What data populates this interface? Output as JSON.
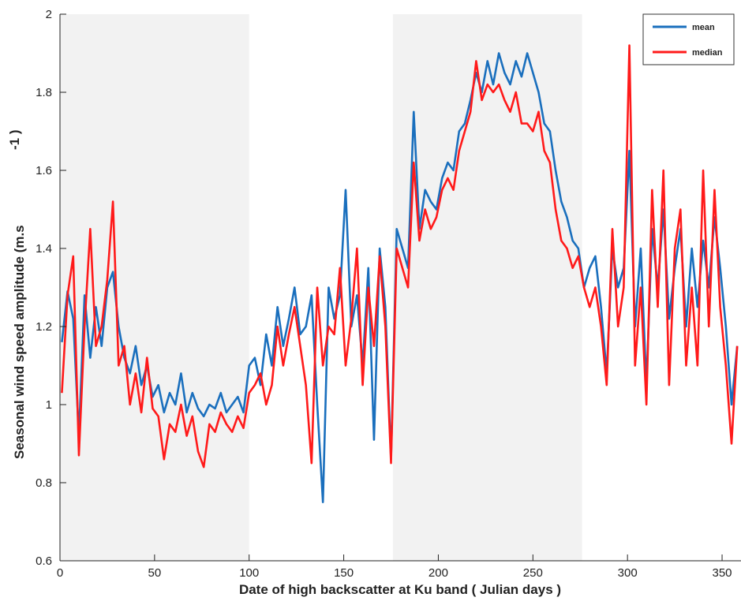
{
  "chart_data": {
    "type": "line",
    "xlabel": "Date of high backscatter at Ku band ( Julian days )",
    "ylabel": "Seasonal wind speed amplitude (m.s",
    "ylabel_superscript": "-1 )",
    "xlim": [
      0,
      360
    ],
    "xticks": [
      0,
      50,
      100,
      150,
      200,
      250,
      300,
      350
    ],
    "ylim": [
      0.6,
      2
    ],
    "yticks": [
      0.6,
      0.8,
      1,
      1.2,
      1.4,
      1.6,
      1.8,
      2
    ],
    "shaded_spans": [
      [
        0,
        100
      ],
      [
        176,
        276
      ]
    ],
    "shade_color": "#f2f2f2",
    "legend": "upper right",
    "x": [
      1,
      4,
      7,
      10,
      13,
      16,
      19,
      22,
      25,
      28,
      31,
      34,
      37,
      40,
      43,
      46,
      49,
      52,
      55,
      58,
      61,
      64,
      67,
      70,
      73,
      76,
      79,
      82,
      85,
      88,
      91,
      94,
      97,
      100,
      103,
      106,
      109,
      112,
      115,
      118,
      121,
      124,
      127,
      130,
      133,
      136,
      139,
      142,
      145,
      148,
      151,
      154,
      157,
      160,
      163,
      166,
      169,
      172,
      175,
      178,
      181,
      184,
      187,
      190,
      193,
      196,
      199,
      202,
      205,
      208,
      211,
      214,
      217,
      220,
      223,
      226,
      229,
      232,
      235,
      238,
      241,
      244,
      247,
      250,
      253,
      256,
      259,
      262,
      265,
      268,
      271,
      274,
      277,
      280,
      283,
      286,
      289,
      292,
      295,
      298,
      301,
      304,
      307,
      310,
      313,
      316,
      319,
      322,
      325,
      328,
      331,
      334,
      337,
      340,
      343,
      346,
      349,
      352,
      355,
      358
    ],
    "series": [
      {
        "name": "mean",
        "color": "#1a6fbd",
        "values": [
          1.16,
          1.29,
          1.22,
          0.92,
          1.28,
          1.12,
          1.25,
          1.15,
          1.3,
          1.34,
          1.2,
          1.12,
          1.08,
          1.15,
          1.05,
          1.1,
          1.02,
          1.05,
          0.98,
          1.03,
          1.0,
          1.08,
          0.98,
          1.03,
          0.99,
          0.97,
          1.0,
          0.99,
          1.03,
          0.98,
          1.0,
          1.02,
          0.98,
          1.1,
          1.12,
          1.05,
          1.18,
          1.1,
          1.25,
          1.15,
          1.22,
          1.3,
          1.18,
          1.2,
          1.28,
          1.0,
          0.75,
          1.3,
          1.22,
          1.28,
          1.55,
          1.2,
          1.28,
          1.1,
          1.35,
          0.91,
          1.4,
          1.25,
          0.86,
          1.45,
          1.4,
          1.35,
          1.75,
          1.45,
          1.55,
          1.52,
          1.5,
          1.58,
          1.62,
          1.6,
          1.7,
          1.72,
          1.78,
          1.85,
          1.8,
          1.88,
          1.82,
          1.9,
          1.85,
          1.82,
          1.88,
          1.84,
          1.9,
          1.85,
          1.8,
          1.72,
          1.7,
          1.6,
          1.52,
          1.48,
          1.42,
          1.4,
          1.3,
          1.35,
          1.38,
          1.25,
          1.08,
          1.4,
          1.3,
          1.35,
          1.65,
          1.2,
          1.4,
          1.05,
          1.45,
          1.3,
          1.5,
          1.22,
          1.35,
          1.45,
          1.2,
          1.4,
          1.25,
          1.42,
          1.3,
          1.48,
          1.35,
          1.2,
          1.0,
          1.15
        ]
      },
      {
        "name": "median",
        "color": "#ff1a1a",
        "values": [
          1.03,
          1.28,
          1.38,
          0.87,
          1.2,
          1.45,
          1.15,
          1.2,
          1.32,
          1.52,
          1.1,
          1.15,
          1.0,
          1.08,
          0.98,
          1.12,
          0.99,
          0.97,
          0.86,
          0.95,
          0.93,
          1.0,
          0.92,
          0.97,
          0.88,
          0.84,
          0.95,
          0.93,
          0.98,
          0.95,
          0.93,
          0.97,
          0.94,
          1.03,
          1.05,
          1.08,
          1.0,
          1.05,
          1.2,
          1.1,
          1.18,
          1.25,
          1.15,
          1.05,
          0.85,
          1.3,
          1.1,
          1.2,
          1.18,
          1.35,
          1.1,
          1.22,
          1.4,
          1.05,
          1.3,
          1.15,
          1.38,
          1.2,
          0.85,
          1.4,
          1.35,
          1.3,
          1.62,
          1.42,
          1.5,
          1.45,
          1.48,
          1.55,
          1.58,
          1.55,
          1.65,
          1.7,
          1.75,
          1.88,
          1.78,
          1.82,
          1.8,
          1.82,
          1.78,
          1.75,
          1.8,
          1.72,
          1.72,
          1.7,
          1.75,
          1.65,
          1.62,
          1.5,
          1.42,
          1.4,
          1.35,
          1.38,
          1.3,
          1.25,
          1.3,
          1.2,
          1.05,
          1.45,
          1.2,
          1.3,
          1.92,
          1.1,
          1.3,
          1.0,
          1.55,
          1.25,
          1.6,
          1.05,
          1.4,
          1.5,
          1.1,
          1.3,
          1.1,
          1.6,
          1.2,
          1.55,
          1.25,
          1.1,
          0.9,
          1.15
        ]
      }
    ]
  }
}
